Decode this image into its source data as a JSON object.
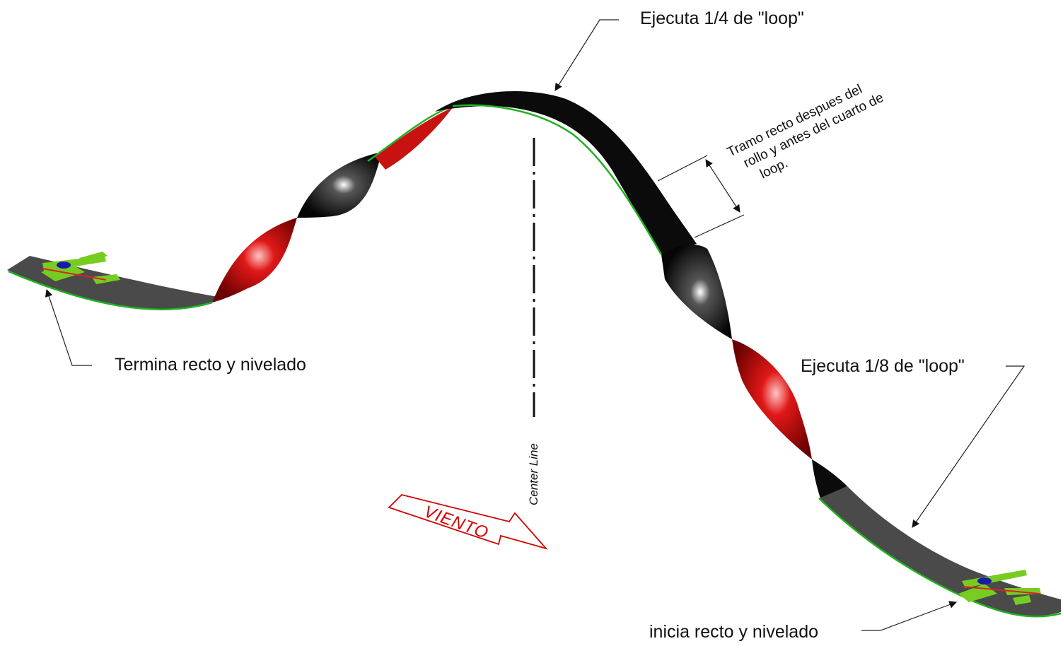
{
  "labels": {
    "top_quarter_loop": "Ejecuta 1/4 de \"loop\"",
    "straight_segment": [
      "Tramo recto despues del",
      "rollo y antes del cuarto de",
      "loop."
    ],
    "finish": "Termina recto y nivelado",
    "eighth_loop": "Ejecuta 1/8 de \"loop\"",
    "start": "inicia recto y nivelado",
    "center_line": "Center Line",
    "wind": "VIENTO"
  },
  "colors": {
    "ribbon_dark": "#111111",
    "ribbon_grey": "#4a4a4a",
    "ribbon_red": "#c81212",
    "ribbon_edge": "#22b022",
    "plane_green": "#77cc22",
    "plane_blue": "#1a1aaa",
    "plane_red": "#dd2222",
    "wind_red": "#d40000"
  }
}
